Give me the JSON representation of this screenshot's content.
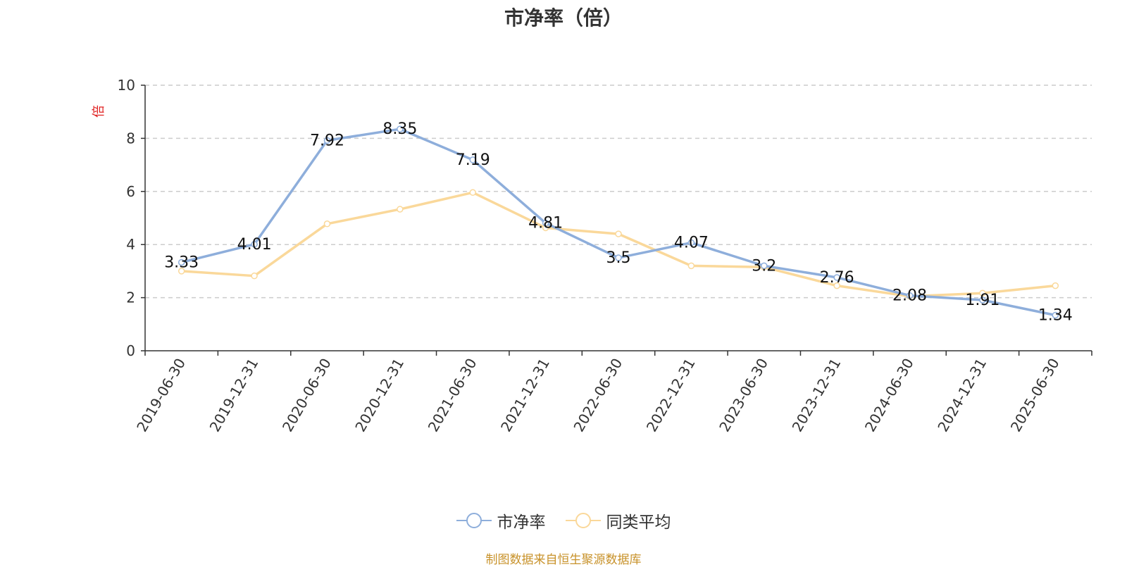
{
  "chart_data": {
    "type": "line",
    "title": "市净率（倍）",
    "ylabel": "倍",
    "xlabel": "",
    "ylim": [
      0,
      10
    ],
    "yticks": [
      0,
      2,
      4,
      6,
      8,
      10
    ],
    "grid": true,
    "legend_position": "bottom-center",
    "categories": [
      "2019-06-30",
      "2019-12-31",
      "2020-06-30",
      "2020-12-31",
      "2021-06-30",
      "2021-12-31",
      "2022-06-30",
      "2022-12-31",
      "2023-06-30",
      "2023-12-31",
      "2024-06-30",
      "2024-12-31",
      "2025-06-30"
    ],
    "series": [
      {
        "name": "市净率",
        "color": "#8eaedb",
        "values": [
          3.33,
          4.01,
          7.92,
          8.35,
          7.19,
          4.81,
          3.5,
          4.07,
          3.2,
          2.76,
          2.08,
          1.91,
          1.34
        ],
        "show_labels": true
      },
      {
        "name": "同类平均",
        "color": "#fad89a",
        "values": [
          3.0,
          2.82,
          4.78,
          5.33,
          5.96,
          4.63,
          4.4,
          3.2,
          3.15,
          2.45,
          2.05,
          2.17,
          2.45
        ],
        "show_labels": false
      }
    ]
  },
  "source_note": "制图数据来自恒生聚源数据库"
}
